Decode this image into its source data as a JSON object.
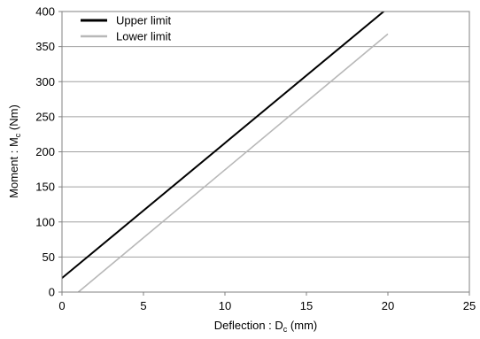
{
  "chart_data": {
    "type": "line",
    "xlabel": {
      "main": "Deflection : D",
      "sub": "c",
      "unit": " (mm)"
    },
    "ylabel": {
      "main": "Moment : M",
      "sub": "c",
      "unit": " (Nm)"
    },
    "xlim": [
      0,
      25
    ],
    "ylim": [
      0,
      400
    ],
    "xticks": [
      0,
      5,
      10,
      15,
      20,
      25
    ],
    "yticks": [
      0,
      50,
      100,
      150,
      200,
      250,
      300,
      350,
      400
    ],
    "grid": {
      "horizontal": true,
      "vertical": false
    },
    "legend_position": "top-left",
    "series": [
      {
        "name": "Upper limit",
        "color": "#000000",
        "x": [
          0,
          20
        ],
        "y": [
          20,
          405
        ]
      },
      {
        "name": "Lower limit",
        "color": "#b8b8b8",
        "x": [
          1,
          20
        ],
        "y": [
          0,
          368
        ]
      }
    ]
  }
}
